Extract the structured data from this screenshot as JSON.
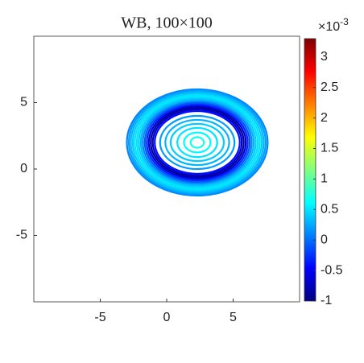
{
  "chart_data": {
    "type": "contour",
    "title": "WB, 100×100",
    "xlim": [
      -10,
      10
    ],
    "ylim": [
      -10,
      10
    ],
    "xticks": [
      -5,
      0,
      5
    ],
    "yticks": [
      -5,
      0,
      5
    ],
    "colormap": "jet",
    "clim": [
      -1,
      3.3
    ],
    "cticks": [
      -1,
      -0.5,
      0,
      0.5,
      1,
      1.5,
      2,
      2.5,
      3
    ],
    "colorbar_scale": {
      "base": "×10",
      "exponent": "-3"
    },
    "center": [
      2.3,
      2
    ],
    "contours": [
      {
        "rx": 5.3,
        "ry": 4.0,
        "level": 0.1
      },
      {
        "rx": 5.15,
        "ry": 3.9,
        "level": 0.2
      },
      {
        "rx": 5.0,
        "ry": 3.8,
        "level": 0.3
      },
      {
        "rx": 4.85,
        "ry": 3.68,
        "level": 0.4
      },
      {
        "rx": 4.7,
        "ry": 3.56,
        "level": 0.5
      },
      {
        "rx": 4.55,
        "ry": 3.44,
        "level": 0.5
      },
      {
        "rx": 4.4,
        "ry": 3.32,
        "level": 0.4
      },
      {
        "rx": 4.25,
        "ry": 3.2,
        "level": 0.3
      },
      {
        "rx": 4.1,
        "ry": 3.08,
        "level": 0.1
      },
      {
        "rx": 3.95,
        "ry": 2.96,
        "level": -0.1
      },
      {
        "rx": 3.8,
        "ry": 2.84,
        "level": -0.3
      },
      {
        "rx": 3.65,
        "ry": 2.72,
        "level": -0.6
      },
      {
        "rx": 3.5,
        "ry": 2.6,
        "level": -0.9
      },
      {
        "rx": 3.35,
        "ry": 2.48,
        "level": -0.7
      },
      {
        "rx": 3.2,
        "ry": 2.36,
        "level": -0.4
      },
      {
        "rx": 2.8,
        "ry": 2.0,
        "level": 0.2
      },
      {
        "rx": 2.4,
        "ry": 1.7,
        "level": 0.3
      },
      {
        "rx": 2.0,
        "ry": 1.4,
        "level": 0.4
      },
      {
        "rx": 1.5,
        "ry": 1.1,
        "level": 0.5
      },
      {
        "rx": 1.0,
        "ry": 0.75,
        "level": 0.6
      },
      {
        "rx": 0.5,
        "ry": 0.4,
        "level": 0.7
      }
    ]
  }
}
